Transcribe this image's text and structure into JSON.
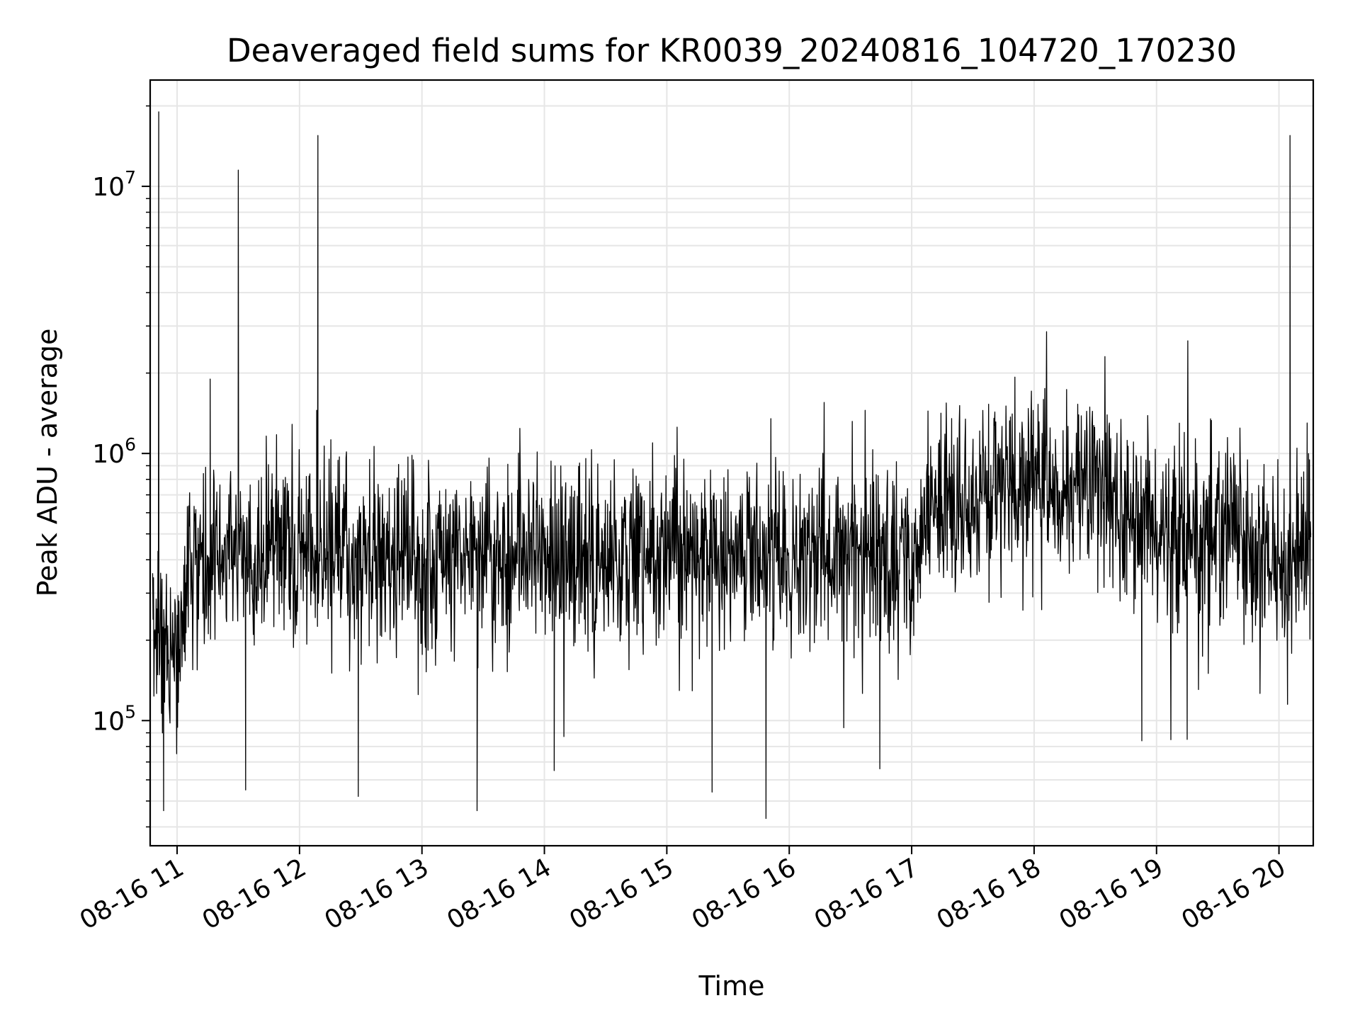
{
  "chart_data": {
    "type": "line",
    "title": "Deaveraged field sums for KR0039_20240816_104720_170230",
    "xlabel": "Time",
    "ylabel": "Peak ADU - average",
    "yscale": "log",
    "xlim_hours": [
      10.78,
      20.28
    ],
    "ylim": [
      34000,
      25000000
    ],
    "grid": true,
    "x_ticks": [
      {
        "hour": 11,
        "label": "08-16 11"
      },
      {
        "hour": 12,
        "label": "08-16 12"
      },
      {
        "hour": 13,
        "label": "08-16 13"
      },
      {
        "hour": 14,
        "label": "08-16 14"
      },
      {
        "hour": 15,
        "label": "08-16 15"
      },
      {
        "hour": 16,
        "label": "08-16 16"
      },
      {
        "hour": 17,
        "label": "08-16 17"
      },
      {
        "hour": 18,
        "label": "08-16 18"
      },
      {
        "hour": 19,
        "label": "08-16 19"
      },
      {
        "hour": 20,
        "label": "08-16 20"
      }
    ],
    "y_ticks": [
      {
        "value": 100000,
        "base": "10",
        "exp": "5"
      },
      {
        "value": 1000000,
        "base": "10",
        "exp": "6"
      },
      {
        "value": 10000000,
        "base": "10",
        "exp": "7"
      }
    ],
    "series": [
      {
        "name": "field sums",
        "color": "#000000",
        "points": 2600,
        "baseline": [
          [
            10.78,
            230000
          ],
          [
            11.0,
            180000
          ],
          [
            11.12,
            400000
          ],
          [
            11.5,
            420000
          ],
          [
            12.0,
            420000
          ],
          [
            13.0,
            400000
          ],
          [
            14.0,
            420000
          ],
          [
            15.0,
            420000
          ],
          [
            16.0,
            430000
          ],
          [
            17.05,
            430000
          ],
          [
            17.15,
            620000
          ],
          [
            17.5,
            700000
          ],
          [
            18.0,
            800000
          ],
          [
            18.5,
            750000
          ],
          [
            18.8,
            550000
          ],
          [
            19.4,
            520000
          ],
          [
            19.9,
            430000
          ],
          [
            20.0,
            380000
          ],
          [
            20.28,
            420000
          ]
        ],
        "noise_log10": 0.17,
        "spikes": [
          {
            "hour": 10.85,
            "value": 19000000
          },
          {
            "hour": 11.5,
            "value": 11500000
          },
          {
            "hour": 11.27,
            "value": 1900000
          },
          {
            "hour": 12.15,
            "value": 15500000
          },
          {
            "hour": 12.14,
            "value": 1450000
          },
          {
            "hour": 20.09,
            "value": 15500000
          },
          {
            "hour": 20.07,
            "value": 115000
          },
          {
            "hour": 15.81,
            "value": 43000
          },
          {
            "hour": 13.45,
            "value": 46000
          },
          {
            "hour": 10.89,
            "value": 46000
          },
          {
            "hour": 12.48,
            "value": 52000
          },
          {
            "hour": 11.56,
            "value": 55000
          },
          {
            "hour": 14.08,
            "value": 65000
          },
          {
            "hour": 15.37,
            "value": 54000
          },
          {
            "hour": 16.74,
            "value": 66000
          },
          {
            "hour": 18.88,
            "value": 84000
          },
          {
            "hour": 19.25,
            "value": 85000
          },
          {
            "hour": 15.85,
            "value": 1350000
          },
          {
            "hour": 20.23,
            "value": 1300000
          }
        ]
      }
    ]
  }
}
